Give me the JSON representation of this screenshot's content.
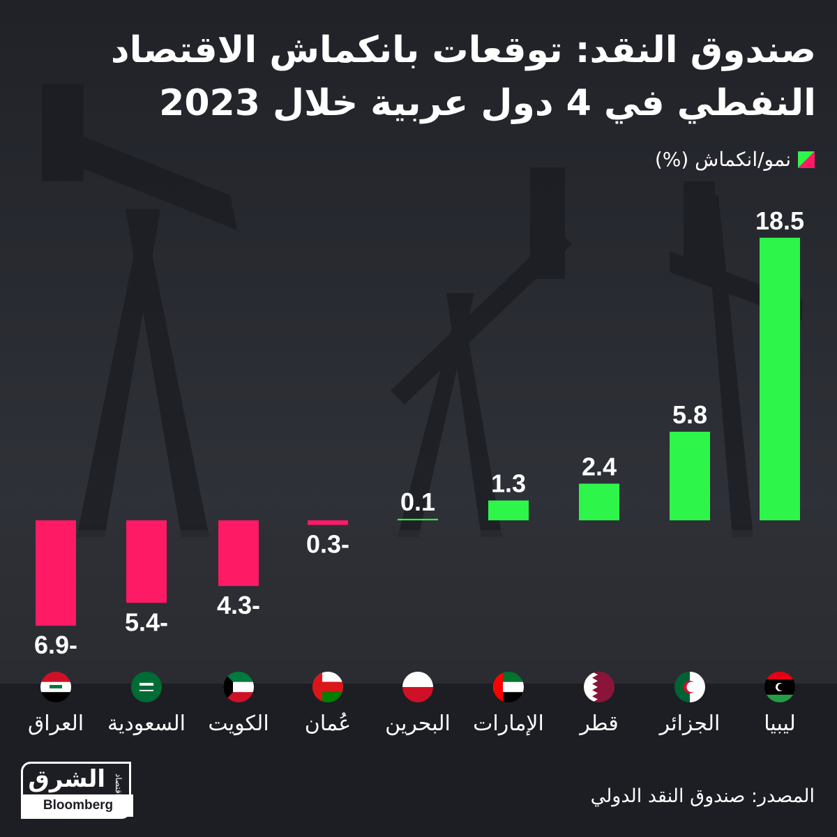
{
  "title": "صندوق النقد: توقعات بانكماش الاقتصاد النفطي في 4 دول عربية خلال 2023",
  "legend": {
    "label": "نمو/انكماش (%)",
    "color_positive": "#2ef54a",
    "color_negative": "#ff1a66"
  },
  "source": "المصدر: صندوق النقد الدولي",
  "logo": {
    "main": "الشرق",
    "sub": "اقتصاد",
    "with": "مع",
    "partner": "Bloomberg"
  },
  "chart_data": {
    "type": "bar",
    "title": "صندوق النقد: توقعات بانكماش الاقتصاد النفطي في 4 دول عربية خلال 2023",
    "xlabel": "",
    "ylabel": "نمو/انكماش (%)",
    "categories": [
      "العراق",
      "السعودية",
      "الكويت",
      "عُمان",
      "البحرين",
      "الإمارات",
      "قطر",
      "الجزائر",
      "ليبيا"
    ],
    "values": [
      -6.9,
      -5.4,
      -4.3,
      -0.3,
      0.1,
      1.3,
      2.4,
      5.8,
      18.5
    ],
    "labels": [
      "6.9-",
      "5.4-",
      "4.3-",
      "0.3-",
      "0.1",
      "1.3",
      "2.4",
      "5.8",
      "18.5"
    ],
    "flags": [
      "iraq-flag",
      "saudi-flag",
      "kuwait-flag",
      "oman-flag",
      "bahrain-flag",
      "uae-flag",
      "qatar-flag",
      "algeria-flag",
      "libya-flag"
    ],
    "ylim": [
      -6.9,
      18.5
    ],
    "grid": false,
    "legend_position": "top-right",
    "colors": {
      "positive": "#2ef54a",
      "negative": "#ff1a66"
    }
  }
}
